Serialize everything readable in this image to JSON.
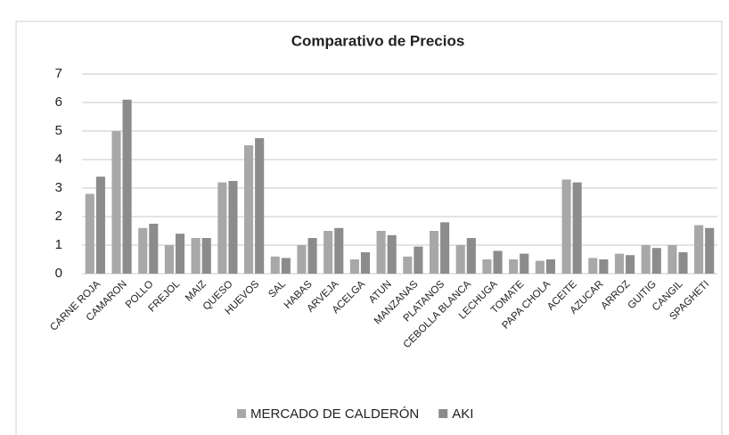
{
  "chart_data": {
    "type": "bar",
    "title": "Comparativo de Precios",
    "categories": [
      "CARNE ROJA",
      "CAMARON",
      "POLLO",
      "FREJOL",
      "MAIZ",
      "QUESO",
      "HUEVOS",
      "SAL",
      "HABAS",
      "ARVEJA",
      "ACELGA",
      "ATUN",
      "MANZANAS",
      "PLATANOS",
      "CEBOLLA BLANCA",
      "LECHUGA",
      "TOMATE",
      "PAPA CHOLA",
      "ACEITE",
      "AZUCAR",
      "ARROZ",
      "GUITIG",
      "CANGIL",
      "SPAGHETI"
    ],
    "series": [
      {
        "name": "MERCADO DE CALDERÓN",
        "color": "#a8a8a8",
        "values": [
          2.8,
          5.0,
          1.6,
          1.0,
          1.25,
          3.2,
          4.5,
          0.6,
          1.0,
          1.5,
          0.5,
          1.5,
          0.6,
          1.5,
          1.0,
          0.5,
          0.5,
          0.45,
          3.3,
          0.55,
          0.7,
          1.0,
          1.0,
          1.7
        ]
      },
      {
        "name": "AKI",
        "color": "#8c8c8c",
        "values": [
          3.4,
          6.1,
          1.75,
          1.4,
          1.25,
          3.25,
          4.75,
          0.55,
          1.25,
          1.6,
          0.75,
          1.35,
          0.95,
          1.8,
          1.25,
          0.8,
          0.7,
          0.5,
          3.2,
          0.5,
          0.65,
          0.9,
          0.75,
          1.6
        ]
      }
    ],
    "ylim": [
      0,
      7
    ],
    "yticks": [
      0,
      1,
      2,
      3,
      4,
      5,
      6,
      7
    ],
    "grid": true,
    "legend": "bottom"
  }
}
